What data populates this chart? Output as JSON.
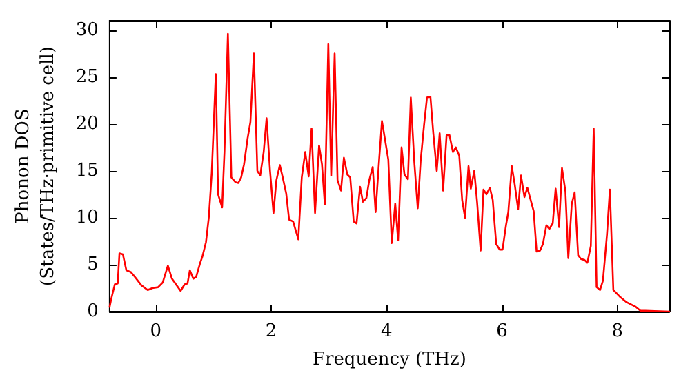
{
  "chart_data": {
    "type": "line",
    "xlabel": "Frequency (THz)",
    "ylabel": "Phonon DOS\n(States/THz·primitive cell)",
    "xlim": [
      -0.8,
      8.9
    ],
    "xticks": [
      0,
      2,
      4,
      6,
      8
    ],
    "ylim": [
      0,
      31
    ],
    "yticks": [
      0,
      5,
      10,
      15,
      20,
      25,
      30
    ],
    "grid": false,
    "marker": "none",
    "line_style": "solid",
    "series": [
      {
        "color": "#ff0000",
        "x": [
          -0.8,
          -0.77,
          -0.71,
          -0.66,
          -0.63,
          -0.57,
          -0.51,
          -0.43,
          -0.35,
          -0.25,
          -0.14,
          -0.06,
          0.04,
          0.12,
          0.21,
          0.28,
          0.35,
          0.43,
          0.5,
          0.55,
          0.59,
          0.65,
          0.7,
          0.77,
          0.81,
          0.87,
          0.92,
          0.97,
          1.04,
          1.08,
          1.15,
          1.19,
          1.25,
          1.31,
          1.38,
          1.43,
          1.48,
          1.53,
          1.59,
          1.64,
          1.7,
          1.76,
          1.81,
          1.87,
          1.92,
          1.98,
          2.04,
          2.09,
          2.15,
          2.2,
          2.26,
          2.31,
          2.38,
          2.47,
          2.53,
          2.59,
          2.65,
          2.7,
          2.76,
          2.83,
          2.88,
          2.93,
          2.99,
          3.04,
          3.1,
          3.15,
          3.21,
          3.26,
          3.32,
          3.37,
          3.43,
          3.48,
          3.54,
          3.59,
          3.65,
          3.7,
          3.76,
          3.81,
          3.87,
          3.92,
          4.03,
          4.09,
          4.15,
          4.2,
          4.26,
          4.31,
          4.37,
          4.42,
          4.48,
          4.54,
          4.59,
          4.65,
          4.7,
          4.76,
          4.81,
          4.87,
          4.92,
          4.98,
          5.04,
          5.09,
          5.15,
          5.2,
          5.26,
          5.31,
          5.36,
          5.42,
          5.46,
          5.52,
          5.57,
          5.63,
          5.68,
          5.73,
          5.79,
          5.84,
          5.9,
          5.96,
          6.01,
          6.07,
          6.11,
          6.17,
          6.22,
          6.28,
          6.33,
          6.39,
          6.44,
          6.55,
          6.6,
          6.66,
          6.71,
          6.77,
          6.82,
          6.88,
          6.93,
          6.99,
          7.04,
          7.1,
          7.15,
          7.21,
          7.26,
          7.32,
          7.37,
          7.43,
          7.48,
          7.54,
          7.59,
          7.64,
          7.7,
          7.75,
          7.82,
          7.87,
          7.93,
          8.04,
          8.16,
          8.32,
          8.4,
          8.9
        ],
        "values": [
          0.5,
          1.4,
          2.9,
          3.0,
          6.2,
          6.1,
          4.4,
          4.2,
          3.6,
          2.8,
          2.3,
          2.5,
          2.6,
          3.1,
          4.9,
          3.5,
          2.9,
          2.2,
          2.9,
          3.0,
          4.4,
          3.5,
          3.7,
          5.2,
          5.9,
          7.4,
          10.1,
          14.8,
          25.3,
          12.5,
          11.1,
          17,
          29.6,
          14.3,
          13.8,
          13.7,
          14.3,
          15.7,
          18.4,
          20.2,
          27.5,
          15,
          14.5,
          17,
          20.6,
          15,
          10.5,
          14,
          15.6,
          14.3,
          12.6,
          9.8,
          9.6,
          7.7,
          14.3,
          17,
          14.4,
          19.5,
          10.5,
          17.7,
          15.7,
          11.4,
          28.5,
          14.5,
          27.5,
          14,
          12.9,
          16.4,
          14.6,
          14.3,
          9.6,
          9.4,
          13.3,
          11.7,
          12.1,
          14,
          15.4,
          10.6,
          16.1,
          20.3,
          16.2,
          7.3,
          11.5,
          7.6,
          17.5,
          14.6,
          14.1,
          22.8,
          16,
          11,
          16,
          19.9,
          22.8,
          22.9,
          19,
          15,
          19,
          12.9,
          18.8,
          18.8,
          17,
          17.5,
          16.6,
          11.9,
          10,
          15.5,
          13.1,
          15,
          11.6,
          6.5,
          13,
          12.5,
          13.2,
          11.9,
          7.2,
          6.6,
          6.6,
          9.2,
          10.6,
          15.5,
          13.6,
          10.9,
          14.5,
          12.2,
          13.2,
          10.7,
          6.4,
          6.5,
          7.2,
          9.2,
          8.8,
          9.4,
          13.1,
          9,
          15.3,
          12.8,
          5.7,
          11.5,
          12.7,
          6,
          5.6,
          5.5,
          5.2,
          7,
          19.5,
          2.6,
          2.3,
          3.3,
          8.2,
          13,
          2.3,
          1.6,
          1,
          0.5,
          0.1,
          0
        ]
      }
    ]
  }
}
